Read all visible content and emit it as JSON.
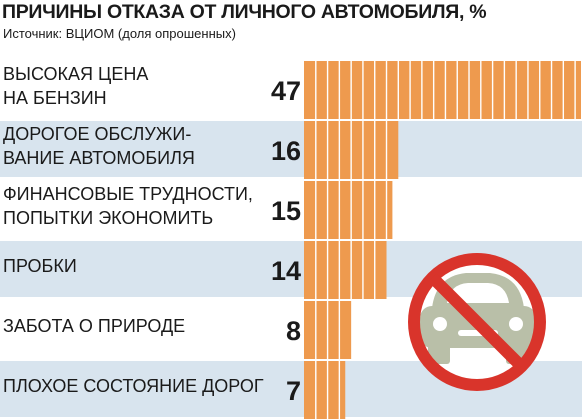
{
  "header": {
    "title": "ПРИЧИНЫ ОТКАЗА ОТ ЛИЧНОГО АВТОМОБИЛЯ, %",
    "source": "Источник: ВЦИОМ (доля опрошенных)"
  },
  "colors": {
    "bar": "#EE9A4E",
    "segment_line": "#ffffff",
    "row_band": "#D8E4EE",
    "icon_circle": "#D9342B",
    "icon_car": "#B9BFA8"
  },
  "icon": {
    "name": "no-car-icon"
  },
  "chart_data": {
    "type": "bar",
    "orientation": "horizontal",
    "title": "ПРИЧИНЫ ОТКАЗА ОТ ЛИЧНОГО АВТОМОБИЛЯ, %",
    "unit": "%",
    "categories": [
      [
        "ВЫСОКАЯ ЦЕНА",
        "НА БЕНЗИН"
      ],
      [
        "ДОРОГОЕ ОБСЛУЖИ-",
        "ВАНИЕ АВТОМОБИЛЯ"
      ],
      [
        "ФИНАНСОВЫЕ ТРУДНОСТИ,",
        "ПОПЫТКИ ЭКОНОМИТЬ"
      ],
      [
        "ПРОБКИ"
      ],
      [
        "ЗАБОТА О ПРИРОДЕ"
      ],
      [
        "ПЛОХОЕ СОСТОЯНИЕ ДОРОГ"
      ]
    ],
    "values": [
      47,
      16,
      15,
      14,
      8,
      7
    ],
    "value_labels": [
      "47",
      "16",
      "15",
      "14",
      "8",
      "7"
    ],
    "segment_step": 2,
    "xlim": [
      0,
      47
    ],
    "grid": false,
    "legend": "none"
  }
}
